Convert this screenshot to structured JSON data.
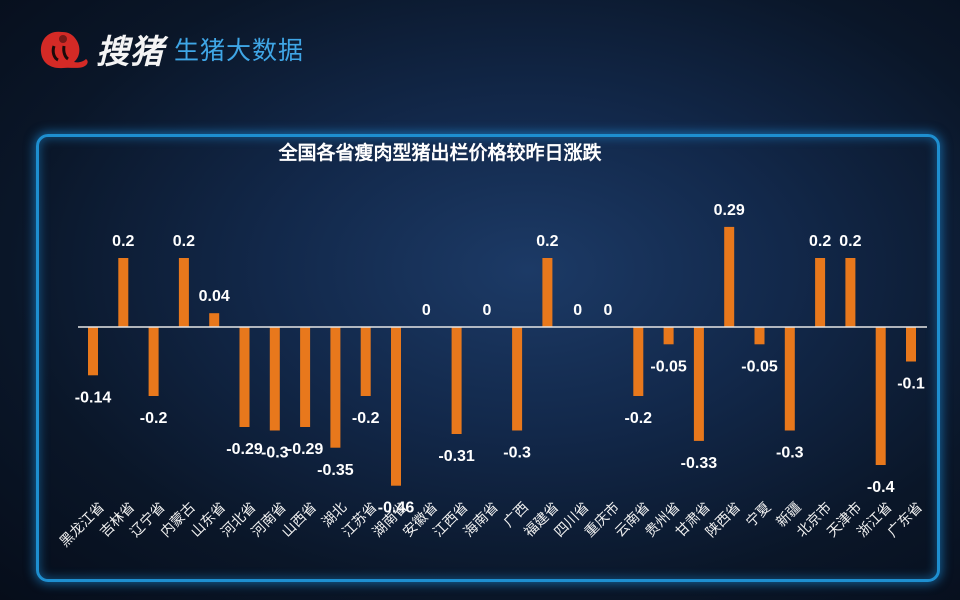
{
  "brand": {
    "logo_icon": "red-circle-pig-logo",
    "name": "搜猪",
    "subtitle": "生猪大数据"
  },
  "colors": {
    "bar": "#e8781c",
    "axis": "#e6e6e6",
    "label": "#ffffff",
    "frame": "#1e8fd0",
    "subtitle": "#3fa6e6"
  },
  "chart_data": {
    "type": "bar",
    "title": "全国各省瘦肉型猪出栏价格较昨日涨跌",
    "xlabel": "",
    "ylabel": "",
    "ylim": [
      -0.5,
      0.35
    ],
    "grid": false,
    "legend": null,
    "data_labels": true,
    "categories": [
      "黑龙江省",
      "吉林省",
      "辽宁省",
      "内蒙古",
      "山东省",
      "河北省",
      "河南省",
      "山西省",
      "湖北",
      "江苏省",
      "湖南省",
      "安徽省",
      "江西省",
      "海南省",
      "广西",
      "福建省",
      "四川省",
      "重庆市",
      "云南省",
      "贵州省",
      "甘肃省",
      "陕西省",
      "宁夏",
      "新疆",
      "北京市",
      "天津市",
      "浙江省",
      "广东省"
    ],
    "values": [
      -0.14,
      0.2,
      -0.2,
      0.2,
      0.04,
      -0.29,
      -0.3,
      -0.29,
      -0.35,
      -0.2,
      -0.46,
      0,
      -0.31,
      0,
      -0.3,
      0.2,
      0,
      0,
      -0.2,
      -0.05,
      -0.33,
      0.29,
      -0.05,
      -0.3,
      0.2,
      0.2,
      -0.4,
      -0.1
    ],
    "labels": [
      "-0.14",
      "0.2",
      "-0.2",
      "0.2",
      "0.04",
      "-0.29",
      "-0.3",
      "-0.29",
      "-0.35",
      "-0.2",
      "-0.46",
      "0",
      "-0.31",
      "0",
      "-0.3",
      "0.2",
      "0",
      "0",
      "-0.2",
      "-0.05",
      "-0.33",
      "0.29",
      "-0.05",
      "-0.3",
      "0.2",
      "0.2",
      "-0.4",
      "-0.1"
    ]
  }
}
